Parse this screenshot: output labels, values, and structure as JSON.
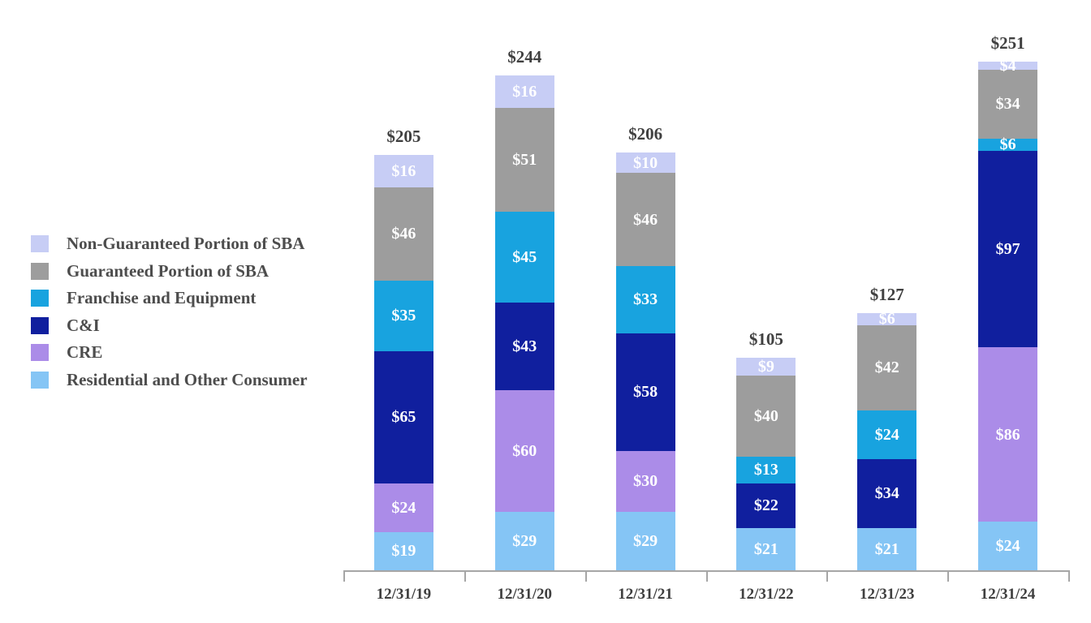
{
  "chart_data": {
    "type": "bar",
    "stacked": true,
    "title": "",
    "xlabel": "",
    "ylabel": "",
    "grid": false,
    "legend_position": "left",
    "value_prefix": "$",
    "ylim": [
      0,
      260
    ],
    "categories": [
      "12/31/19",
      "12/31/20",
      "12/31/21",
      "12/31/22",
      "12/31/23",
      "12/31/24"
    ],
    "series": [
      {
        "name": "Residential and Other Consumer",
        "color": "#85C5F5",
        "values": [
          19,
          29,
          29,
          21,
          21,
          24
        ]
      },
      {
        "name": "CRE",
        "color": "#AB8CE8",
        "values": [
          24,
          60,
          30,
          0,
          0,
          86
        ]
      },
      {
        "name": "C&I",
        "color": "#101F9E",
        "values": [
          65,
          43,
          58,
          22,
          34,
          97
        ]
      },
      {
        "name": "Franchise and Equipment",
        "color": "#18A3DF",
        "values": [
          35,
          45,
          33,
          13,
          24,
          6
        ]
      },
      {
        "name": "Guaranteed Portion of SBA",
        "color": "#9D9D9D",
        "values": [
          46,
          51,
          46,
          40,
          42,
          34
        ]
      },
      {
        "name": "Non-Guaranteed Portion of SBA",
        "color": "#C7CDF5",
        "values": [
          16,
          16,
          10,
          9,
          6,
          4
        ]
      }
    ],
    "totals": [
      "$205",
      "$244",
      "$206",
      "$105",
      "$127",
      "$251"
    ],
    "segment_labels": [
      [
        "$19",
        "$29",
        "$29",
        "$21",
        "$21",
        "$24"
      ],
      [
        "$24",
        "$60",
        "$30",
        "",
        "",
        "$86"
      ],
      [
        "$65",
        "$43",
        "$58",
        "$22",
        "$34",
        "$97"
      ],
      [
        "$35",
        "$45",
        "$33",
        "$13",
        "$24",
        "$6"
      ],
      [
        "$46",
        "$51",
        "$46",
        "$40",
        "$42",
        "$34"
      ],
      [
        "$16",
        "$16",
        "$10",
        "$9",
        "$6",
        "$4"
      ]
    ]
  },
  "legend": {
    "items": [
      {
        "label": "Non-Guaranteed Portion of SBA",
        "color": "#C7CDF5"
      },
      {
        "label": "Guaranteed Portion of SBA",
        "color": "#9D9D9D"
      },
      {
        "label": "Franchise and Equipment",
        "color": "#18A3DF"
      },
      {
        "label": "C&I",
        "color": "#101F9E"
      },
      {
        "label": "CRE",
        "color": "#AB8CE8"
      },
      {
        "label": "Residential and Other Consumer",
        "color": "#85C5F5"
      }
    ]
  },
  "colors": {
    "axis": "#A6A6A6",
    "total_label": "#404040",
    "axis_label": "#3F3F3F",
    "legend_text": "#4D4D4D",
    "segment_label": "#FFFFFF"
  }
}
